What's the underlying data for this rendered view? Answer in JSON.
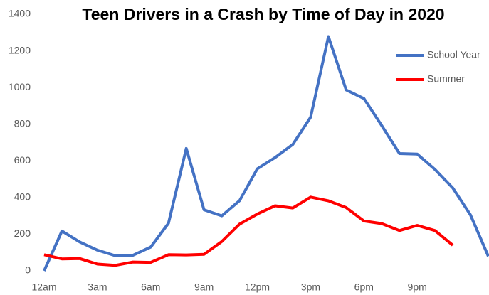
{
  "chart_data": {
    "type": "line",
    "title": "Teen Drivers in a Crash by Time of Day in 2020",
    "categories": [
      "12am",
      null,
      null,
      "3am",
      null,
      null,
      "6am",
      null,
      null,
      "9am",
      null,
      null,
      "12pm",
      null,
      null,
      "3pm",
      null,
      null,
      "6pm",
      null,
      null,
      "9pm",
      null,
      null,
      null,
      null
    ],
    "series": [
      {
        "name": "School Year",
        "color": "#4472c4",
        "values": [
          0,
          217,
          158,
          113,
          83,
          85,
          130,
          260,
          668,
          333,
          300,
          383,
          557,
          618,
          690,
          838,
          1278,
          987,
          940,
          793,
          640,
          637,
          553,
          452,
          305,
          80
        ]
      },
      {
        "name": "Summer",
        "color": "#ff0000",
        "values": [
          88,
          65,
          67,
          37,
          30,
          48,
          46,
          88,
          87,
          90,
          160,
          255,
          310,
          355,
          343,
          402,
          382,
          345,
          272,
          258,
          220,
          248,
          220,
          140,
          null,
          null
        ]
      }
    ],
    "ylim": [
      0,
      1400
    ],
    "yticks": [
      0,
      200,
      400,
      600,
      800,
      1000,
      1200,
      1400
    ],
    "grid": false,
    "legend": "right"
  }
}
